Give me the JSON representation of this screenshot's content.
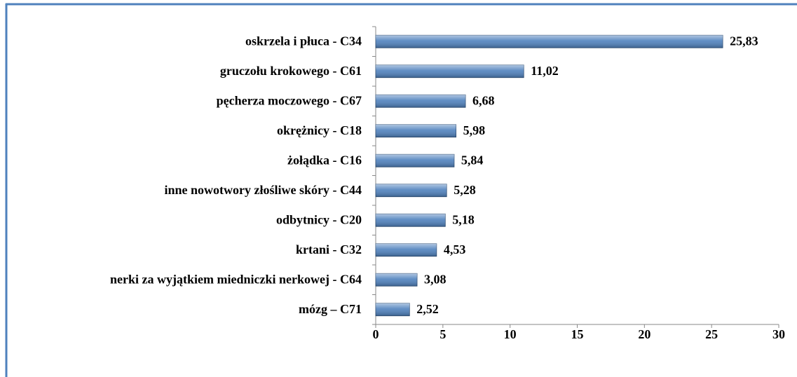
{
  "chart_data": {
    "type": "bar",
    "orientation": "horizontal",
    "categories": [
      "oskrzela i płuca - C34",
      "gruczołu krokowego - C61",
      "pęcherza moczowego - C67",
      "okrężnicy - C18",
      "żołądka - C16",
      "inne nowotwory złośliwe skóry - C44",
      "odbytnicy - C20",
      "krtani - C32",
      "nerki za wyjątkiem miedniczki nerkowej - C64",
      "mózg – C71"
    ],
    "values": [
      25.83,
      11.02,
      6.68,
      5.98,
      5.84,
      5.28,
      5.18,
      4.53,
      3.08,
      2.52
    ],
    "value_labels": [
      "25,83",
      "11,02",
      "6,68",
      "5,98",
      "5,84",
      "5,28",
      "5,18",
      "4,53",
      "3,08",
      "2,52"
    ],
    "color": "#4f81bd",
    "xlim": [
      0,
      30
    ],
    "xticks": [
      0,
      5,
      10,
      15,
      20,
      25,
      30
    ]
  }
}
